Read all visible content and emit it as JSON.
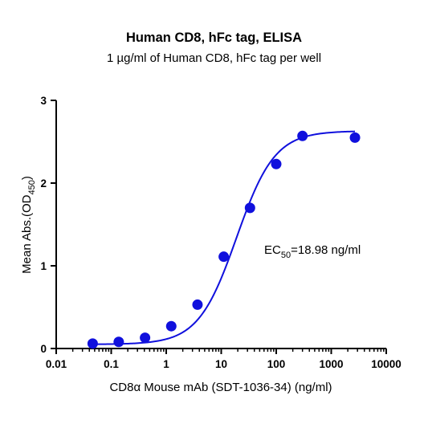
{
  "chart_data": {
    "type": "scatter",
    "title": "Human CD8, hFc tag, ELISA",
    "subtitle": "1 µg/ml of Human CD8, hFc tag per well",
    "xlabel": "CD8α Mouse mAb (SDT-1036-34) (ng/ml)",
    "ylabel": {
      "main": "Mean Abs.(OD",
      "sub": "450",
      "end": ")"
    },
    "x_scale": "log",
    "xlim": [
      0.01,
      10000
    ],
    "ylim": [
      0,
      3
    ],
    "x_ticks": [
      "0.01",
      "0.1",
      "1",
      "10",
      "100",
      "1000",
      "10000"
    ],
    "y_ticks": [
      "0",
      "1",
      "2",
      "3"
    ],
    "annotation": {
      "main": "EC",
      "sub": "50",
      "rest": "=18.98 ng/ml"
    },
    "color": "#1010dd",
    "series": [
      {
        "x": [
          0.046,
          0.137,
          0.412,
          1.235,
          3.704,
          11.11,
          33.33,
          100,
          300,
          2700
        ],
        "y": [
          0.06,
          0.08,
          0.13,
          0.27,
          0.53,
          1.11,
          1.7,
          2.23,
          2.57,
          2.55
        ]
      }
    ],
    "fit": {
      "bottom": 0.05,
      "top": 2.63,
      "ec50": 18.98,
      "hill": 1.25
    }
  }
}
